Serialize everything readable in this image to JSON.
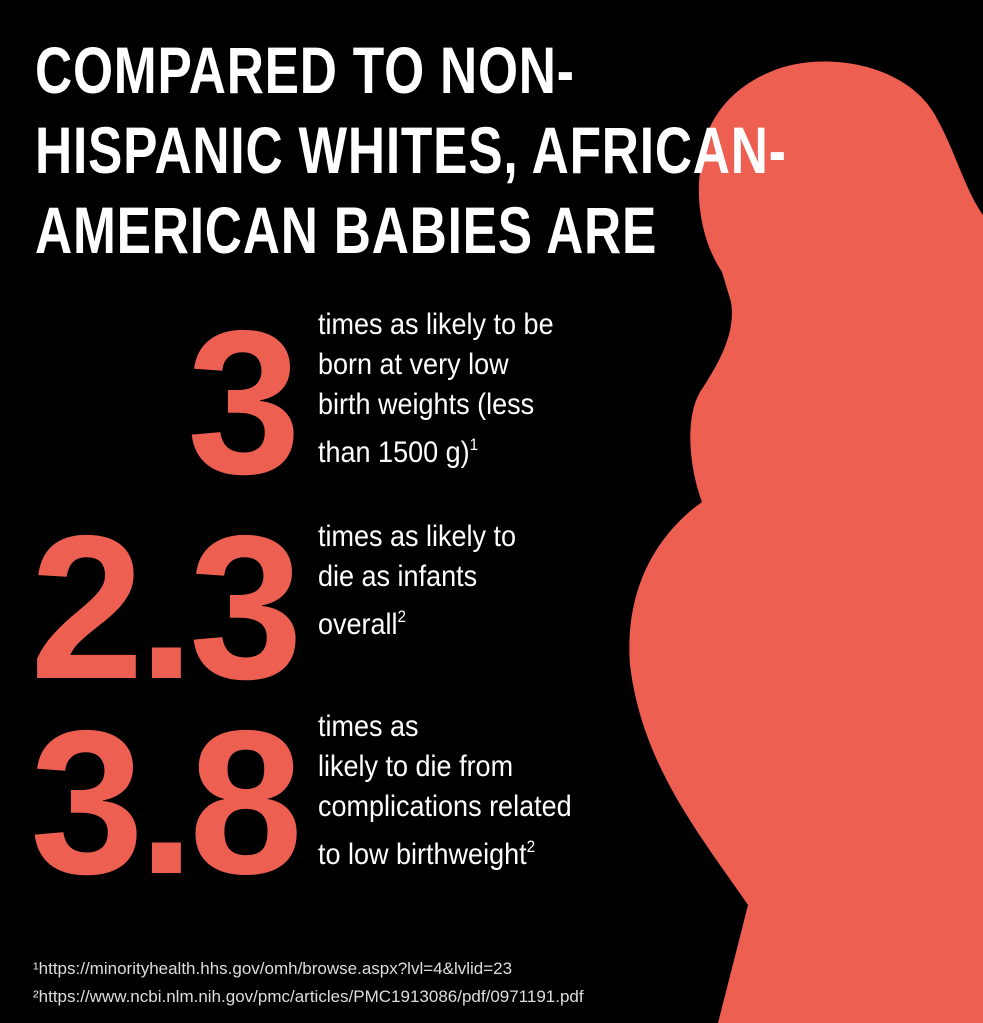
{
  "title_lines": [
    "COMPARED TO NON-",
    "HISPANIC WHITES, AFRICAN-",
    "AMERICAN BABIES ARE"
  ],
  "stats": [
    {
      "number": "3",
      "lines": [
        "times as likely to be",
        "born at very low",
        "birth weights (less",
        "than 1500 g)"
      ],
      "sup": "1"
    },
    {
      "number": "2.3",
      "lines": [
        "times as likely to",
        "die as infants",
        "overall"
      ],
      "sup": "2"
    },
    {
      "number": "3.8",
      "lines": [
        "times as",
        "likely to die from",
        "complications related",
        "to low birthweight"
      ],
      "sup": "2"
    }
  ],
  "footnotes": [
    "¹https://minorityhealth.hhs.gov/omh/browse.aspx?lvl=4&lvlid=23",
    "²https://www.ncbi.nlm.nih.gov/pmc/articles/PMC1913086/pdf/0971191.pdf"
  ]
}
